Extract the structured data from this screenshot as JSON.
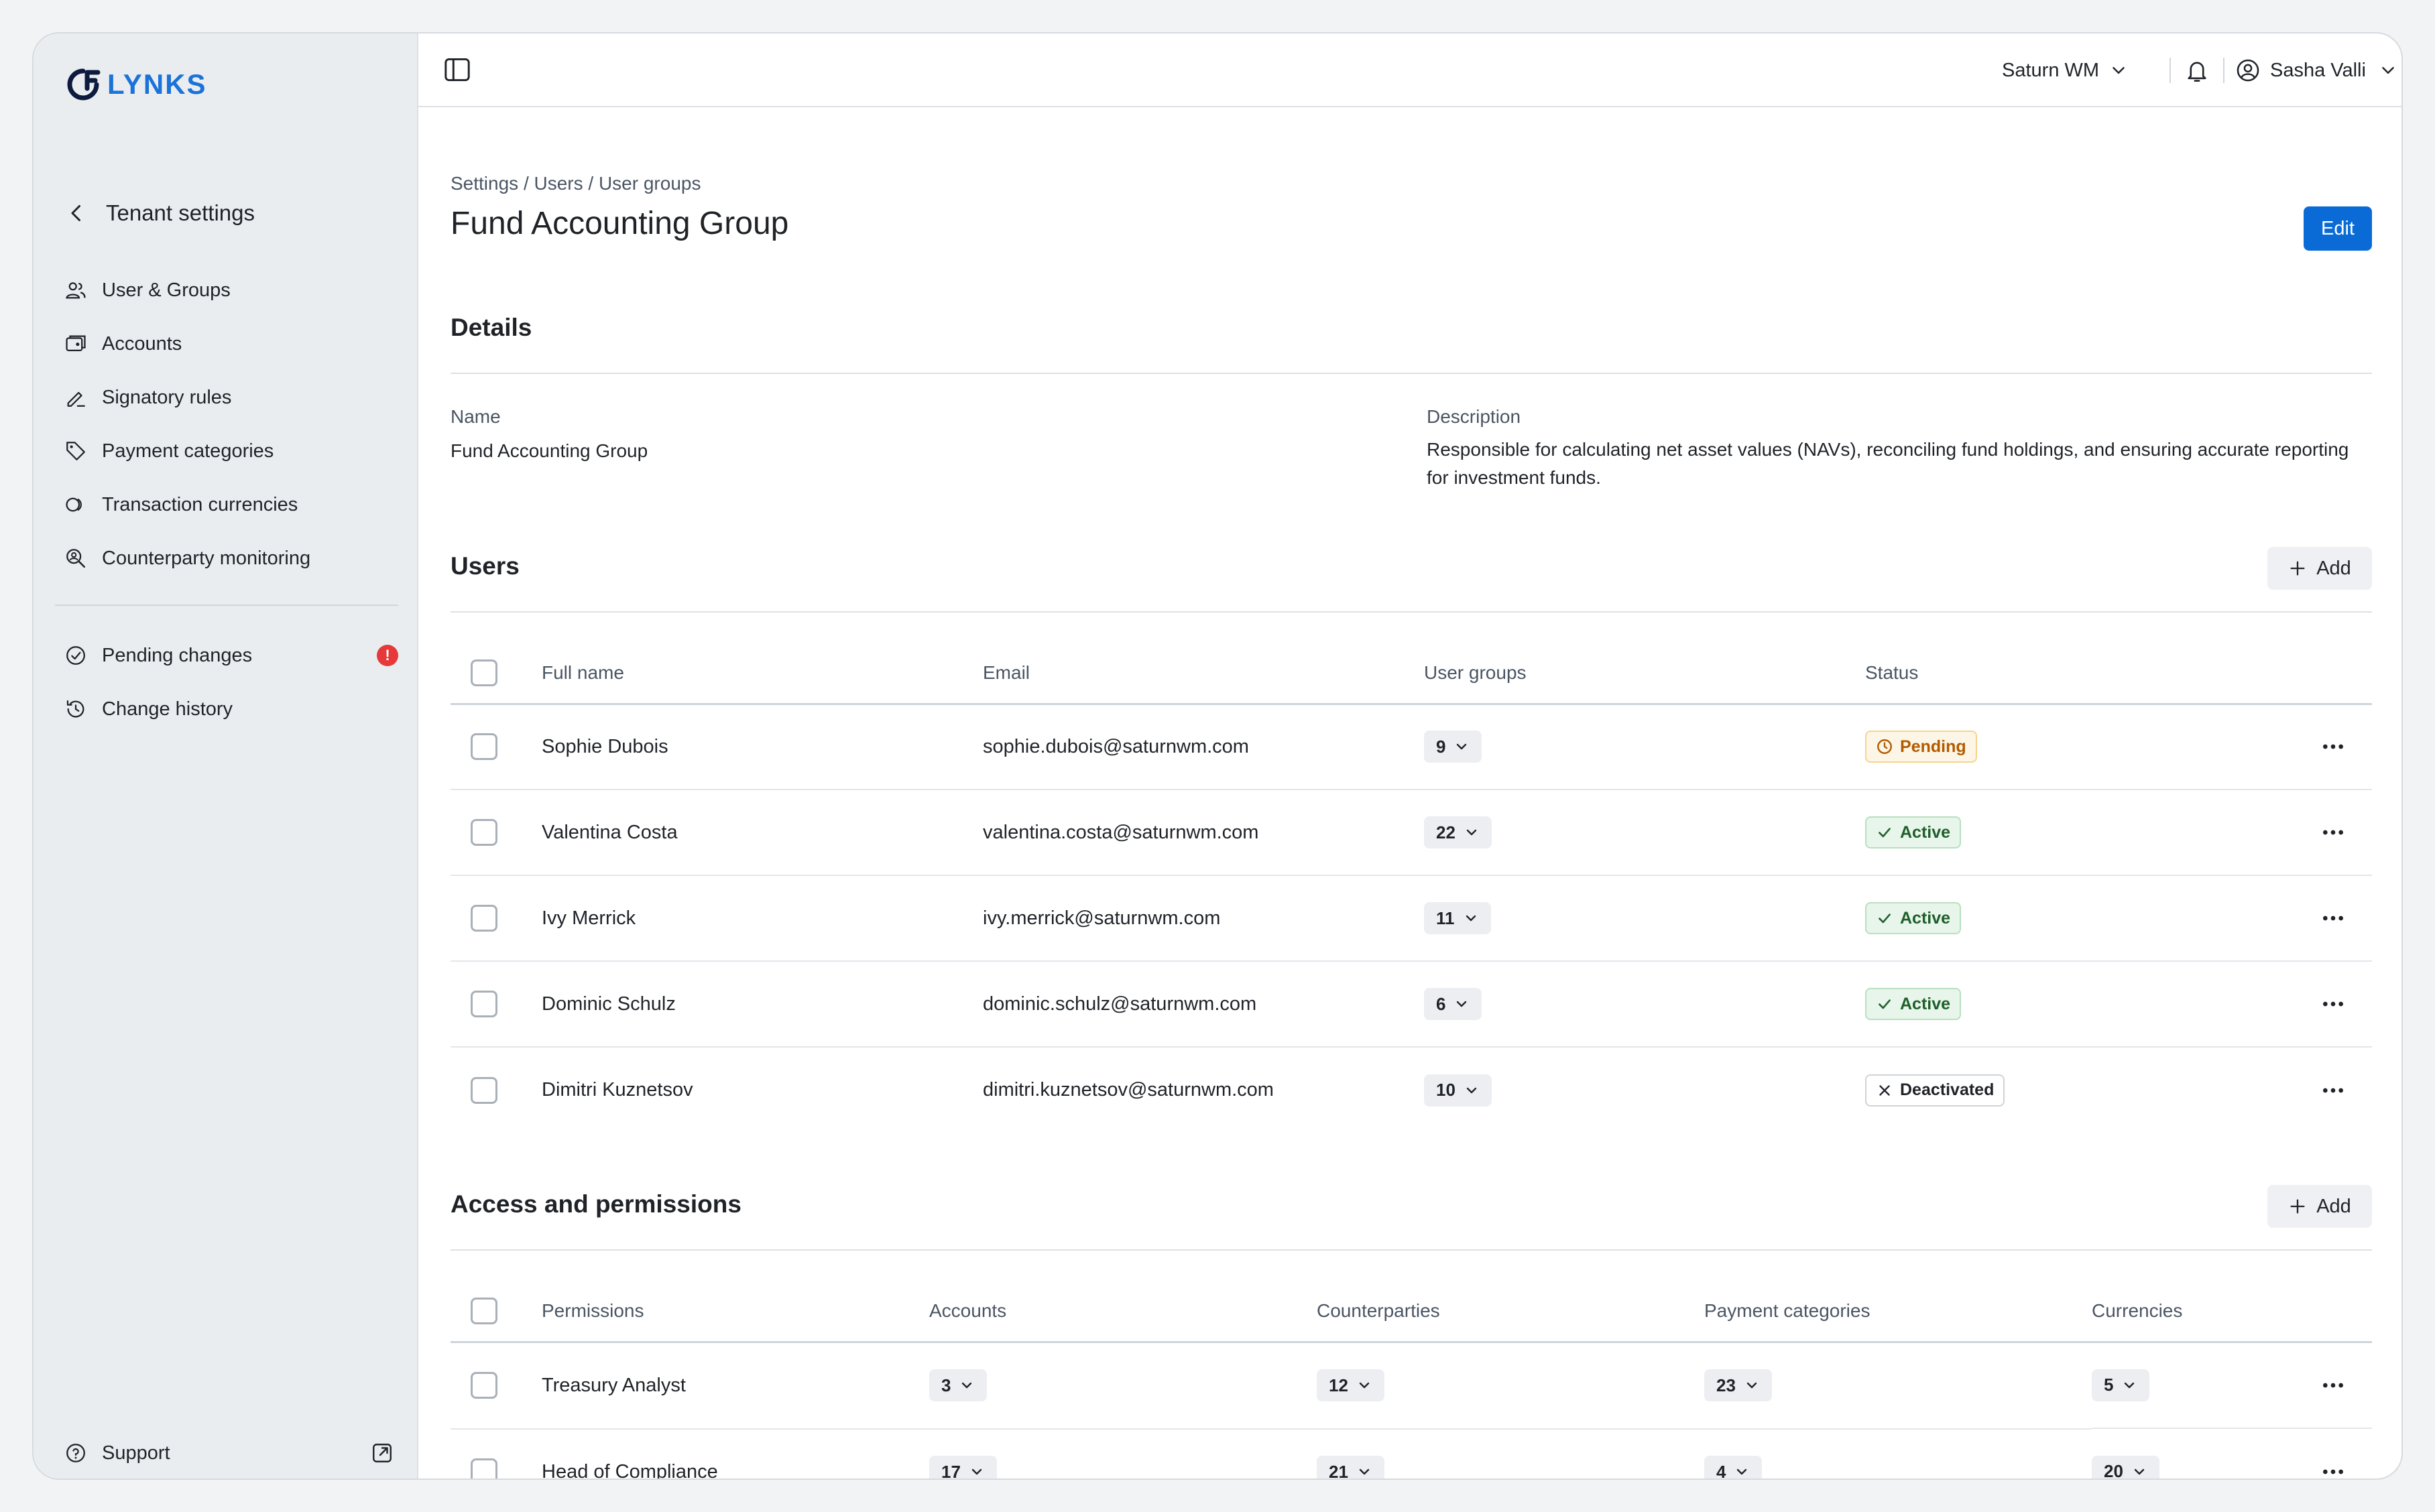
{
  "brand": {
    "name": "LYNKS",
    "color": "#1a73d9"
  },
  "sidebar": {
    "back_label": "Tenant settings",
    "items": [
      {
        "label": "User & Groups",
        "icon": "users-icon"
      },
      {
        "label": "Accounts",
        "icon": "wallet-icon"
      },
      {
        "label": "Signatory rules",
        "icon": "signature-icon"
      },
      {
        "label": "Payment categories",
        "icon": "tag-icon"
      },
      {
        "label": "Transaction currencies",
        "icon": "coins-icon"
      },
      {
        "label": "Counterparty monitoring",
        "icon": "search-user-icon"
      }
    ],
    "items2": [
      {
        "label": "Pending changes",
        "icon": "check-circle-icon",
        "badge": "!"
      },
      {
        "label": "Change history",
        "icon": "history-icon"
      }
    ],
    "support_label": "Support"
  },
  "topbar": {
    "tenant": "Saturn WM",
    "user_name": "Sasha Valli"
  },
  "page": {
    "breadcrumb": "Settings / Users / User groups",
    "title": "Fund Accounting Group",
    "edit_label": "Edit"
  },
  "details": {
    "title": "Details",
    "name_label": "Name",
    "name_value": "Fund Accounting Group",
    "description_label": "Description",
    "description_value": "Responsible for calculating net asset values (NAVs), reconciling fund holdings, and ensuring accurate reporting for investment funds."
  },
  "users": {
    "title": "Users",
    "add_label": "Add",
    "columns": [
      "Full name",
      "Email",
      "User groups",
      "Status"
    ],
    "rows": [
      {
        "name": "Sophie Dubois",
        "email": "sophie.dubois@saturnwm.com",
        "groups": "9",
        "status": "Pending",
        "status_type": "pending"
      },
      {
        "name": "Valentina Costa",
        "email": "valentina.costa@saturnwm.com",
        "groups": "22",
        "status": "Active",
        "status_type": "active"
      },
      {
        "name": "Ivy Merrick",
        "email": "ivy.merrick@saturnwm.com",
        "groups": "11",
        "status": "Active",
        "status_type": "active"
      },
      {
        "name": "Dominic Schulz",
        "email": "dominic.schulz@saturnwm.com",
        "groups": "6",
        "status": "Active",
        "status_type": "active"
      },
      {
        "name": "Dimitri Kuznetsov",
        "email": "dimitri.kuznetsov@saturnwm.com",
        "groups": "10",
        "status": "Deactivated",
        "status_type": "deactivated"
      }
    ]
  },
  "access": {
    "title": "Access and permissions",
    "add_label": "Add",
    "columns": [
      "Permissions",
      "Accounts",
      "Counterparties",
      "Payment categories",
      "Currencies"
    ],
    "rows": [
      {
        "permission": "Treasury Analyst",
        "accounts": "3",
        "counterparties": "12",
        "payment_categories": "23",
        "currencies": "5"
      },
      {
        "permission": "Head of Compliance",
        "accounts": "17",
        "counterparties": "21",
        "payment_categories": "4",
        "currencies": "20"
      }
    ]
  }
}
